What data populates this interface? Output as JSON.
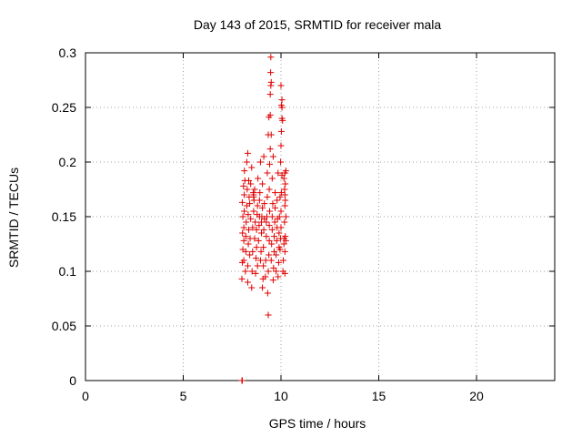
{
  "chart_data": {
    "type": "scatter",
    "title": "Day 143 of 2015, SRMTID for receiver mala",
    "xlabel": "GPS time / hours",
    "ylabel": "SRMTID / TECUs",
    "xlim": [
      0,
      24
    ],
    "ylim": [
      0,
      0.3
    ],
    "xticks": [
      0,
      5,
      10,
      15,
      20
    ],
    "xtick_labels": [
      "0",
      "5",
      "10",
      "15",
      "20"
    ],
    "yticks": [
      0,
      0.05,
      0.1,
      0.15,
      0.2,
      0.25,
      0.3
    ],
    "ytick_labels": [
      "0",
      "0.05",
      "0.1",
      "0.15",
      "0.2",
      "0.25",
      "0.3"
    ],
    "grid": true,
    "marker": "+",
    "color": "#e00000",
    "series": [
      {
        "name": "SRMTID",
        "points": [
          [
            8.0,
            0.0
          ],
          [
            8.02,
            0.0
          ],
          [
            8.0,
            0.093
          ],
          [
            8.02,
            0.108
          ],
          [
            8.05,
            0.12
          ],
          [
            8.03,
            0.135
          ],
          [
            8.05,
            0.15
          ],
          [
            8.02,
            0.163
          ],
          [
            8.08,
            0.178
          ],
          [
            8.1,
            0.11
          ],
          [
            8.1,
            0.128
          ],
          [
            8.1,
            0.14
          ],
          [
            8.12,
            0.155
          ],
          [
            8.12,
            0.17
          ],
          [
            8.15,
            0.183
          ],
          [
            8.13,
            0.192
          ],
          [
            8.18,
            0.1
          ],
          [
            8.2,
            0.118
          ],
          [
            8.2,
            0.132
          ],
          [
            8.22,
            0.145
          ],
          [
            8.25,
            0.16
          ],
          [
            8.27,
            0.175
          ],
          [
            8.25,
            0.2
          ],
          [
            8.3,
            0.09
          ],
          [
            8.3,
            0.105
          ],
          [
            8.33,
            0.125
          ],
          [
            8.35,
            0.138
          ],
          [
            8.32,
            0.152
          ],
          [
            8.37,
            0.168
          ],
          [
            8.35,
            0.183
          ],
          [
            8.3,
            0.208
          ],
          [
            8.4,
            0.115
          ],
          [
            8.42,
            0.13
          ],
          [
            8.45,
            0.148
          ],
          [
            8.4,
            0.162
          ],
          [
            8.45,
            0.18
          ],
          [
            8.5,
            0.195
          ],
          [
            8.5,
            0.085
          ],
          [
            8.52,
            0.1
          ],
          [
            8.55,
            0.118
          ],
          [
            8.55,
            0.14
          ],
          [
            8.6,
            0.155
          ],
          [
            8.6,
            0.168
          ],
          [
            8.58,
            0.172
          ],
          [
            8.6,
            0.17
          ],
          [
            8.62,
            0.165
          ],
          [
            8.65,
            0.175
          ],
          [
            8.65,
            0.13
          ],
          [
            8.68,
            0.145
          ],
          [
            8.7,
            0.098
          ],
          [
            8.72,
            0.112
          ],
          [
            8.75,
            0.122
          ],
          [
            8.75,
            0.138
          ],
          [
            8.78,
            0.152
          ],
          [
            8.8,
            0.16
          ],
          [
            8.82,
            0.185
          ],
          [
            8.8,
            0.105
          ],
          [
            8.85,
            0.128
          ],
          [
            8.88,
            0.142
          ],
          [
            8.9,
            0.15
          ],
          [
            8.9,
            0.165
          ],
          [
            8.92,
            0.172
          ],
          [
            8.95,
            0.2
          ],
          [
            8.95,
            0.11
          ],
          [
            8.98,
            0.118
          ],
          [
            9.0,
            0.135
          ],
          [
            9.0,
            0.145
          ],
          [
            9.02,
            0.15
          ],
          [
            9.05,
            0.158
          ],
          [
            9.05,
            0.18
          ],
          [
            9.05,
            0.085
          ],
          [
            9.08,
            0.093
          ],
          [
            9.1,
            0.105
          ],
          [
            9.1,
            0.122
          ],
          [
            9.12,
            0.138
          ],
          [
            9.15,
            0.148
          ],
          [
            9.15,
            0.162
          ],
          [
            9.12,
            0.205
          ],
          [
            9.2,
            0.095
          ],
          [
            9.22,
            0.11
          ],
          [
            9.25,
            0.132
          ],
          [
            9.25,
            0.145
          ],
          [
            9.28,
            0.15
          ],
          [
            9.3,
            0.168
          ],
          [
            9.3,
            0.19
          ],
          [
            9.32,
            0.08
          ],
          [
            9.35,
            0.06
          ],
          [
            9.35,
            0.1
          ],
          [
            9.38,
            0.115
          ],
          [
            9.4,
            0.128
          ],
          [
            9.4,
            0.142
          ],
          [
            9.42,
            0.155
          ],
          [
            9.4,
            0.175
          ],
          [
            9.42,
            0.198
          ],
          [
            9.35,
            0.225
          ],
          [
            9.38,
            0.241
          ],
          [
            9.45,
            0.212
          ],
          [
            9.45,
            0.243
          ],
          [
            9.5,
            0.225
          ],
          [
            9.45,
            0.262
          ],
          [
            9.48,
            0.27
          ],
          [
            9.47,
            0.282
          ],
          [
            9.5,
            0.273
          ],
          [
            9.48,
            0.296
          ],
          [
            9.5,
            0.11
          ],
          [
            9.52,
            0.125
          ],
          [
            9.55,
            0.138
          ],
          [
            9.55,
            0.15
          ],
          [
            9.58,
            0.162
          ],
          [
            9.55,
            0.185
          ],
          [
            9.6,
            0.205
          ],
          [
            9.6,
            0.092
          ],
          [
            9.62,
            0.103
          ],
          [
            9.65,
            0.118
          ],
          [
            9.65,
            0.132
          ],
          [
            9.68,
            0.145
          ],
          [
            9.7,
            0.158
          ],
          [
            9.7,
            0.172
          ],
          [
            9.75,
            0.1
          ],
          [
            9.75,
            0.115
          ],
          [
            9.78,
            0.128
          ],
          [
            9.8,
            0.14
          ],
          [
            9.82,
            0.148
          ],
          [
            9.8,
            0.165
          ],
          [
            9.85,
            0.19
          ],
          [
            9.85,
            0.095
          ],
          [
            9.88,
            0.108
          ],
          [
            9.9,
            0.122
          ],
          [
            9.9,
            0.135
          ],
          [
            9.92,
            0.15
          ],
          [
            9.95,
            0.168
          ],
          [
            9.95,
            0.12
          ],
          [
            9.98,
            0.13
          ],
          [
            10.0,
            0.14
          ],
          [
            10.0,
            0.155
          ],
          [
            10.02,
            0.172
          ],
          [
            10.05,
            0.188
          ],
          [
            9.98,
            0.2
          ],
          [
            10.0,
            0.215
          ],
          [
            10.02,
            0.228
          ],
          [
            10.05,
            0.24
          ],
          [
            10.02,
            0.252
          ],
          [
            10.0,
            0.27
          ],
          [
            10.05,
            0.25
          ],
          [
            10.08,
            0.238
          ],
          [
            10.05,
            0.257
          ],
          [
            10.1,
            0.1
          ],
          [
            10.12,
            0.11
          ],
          [
            10.15,
            0.125
          ],
          [
            10.15,
            0.13
          ],
          [
            10.18,
            0.145
          ],
          [
            10.2,
            0.16
          ],
          [
            10.18,
            0.175
          ],
          [
            10.2,
            0.19
          ],
          [
            10.15,
            0.185
          ],
          [
            10.2,
            0.17
          ],
          [
            10.22,
            0.165
          ],
          [
            10.22,
            0.18
          ],
          [
            10.25,
            0.192
          ],
          [
            10.2,
            0.098
          ],
          [
            10.2,
            0.118
          ],
          [
            10.22,
            0.132
          ],
          [
            10.25,
            0.15
          ],
          [
            10.25,
            0.128
          ]
        ]
      }
    ]
  }
}
